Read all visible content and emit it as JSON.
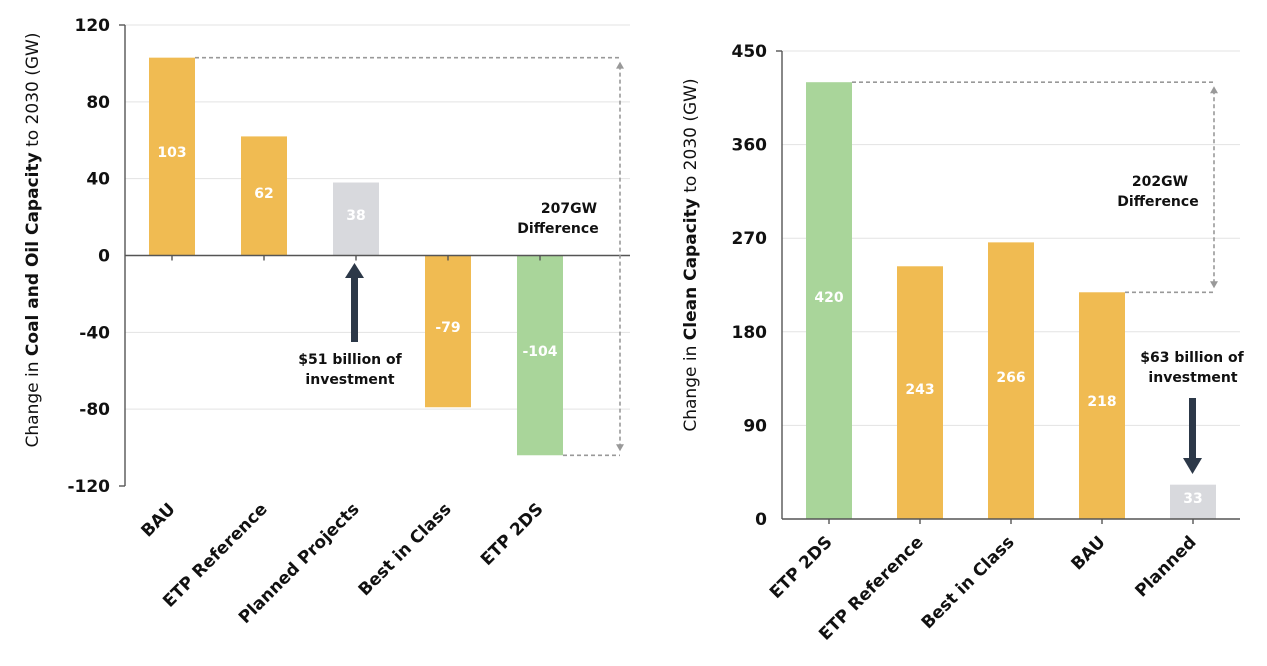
{
  "colors": {
    "bau": "#f0bb52",
    "planned": "#d8d9dd",
    "etp2ds": "#a9d59a",
    "arrow": "#2c3848"
  },
  "chart_data": [
    {
      "type": "bar",
      "categories": [
        "BAU",
        "ETP Reference",
        "Planned Projects",
        "Best in Class",
        "ETP 2DS"
      ],
      "values": [
        103,
        62,
        38,
        -79,
        -104
      ],
      "value_labels": [
        "103",
        "62",
        "38",
        "-79",
        "-104"
      ],
      "bar_colors": [
        "bau",
        "bau",
        "planned",
        "bau",
        "etp2ds"
      ],
      "ylim": [
        -120,
        120
      ],
      "yticks": [
        "120",
        "80",
        "40",
        "0",
        "-40",
        "-80",
        "-120"
      ],
      "ylabel": {
        "pre": "Change in ",
        "bold": "Coal and Oil Capacity",
        "post": " to 2030 (GW)"
      },
      "grid": true,
      "annotations": {
        "difference": [
          "207GW",
          "Difference"
        ],
        "investment": [
          "$51 billion of",
          "investment"
        ]
      }
    },
    {
      "type": "bar",
      "categories": [
        "ETP 2DS",
        "ETP Reference",
        "Best in Class",
        "BAU",
        "Planned"
      ],
      "values": [
        420,
        243,
        266,
        218,
        33
      ],
      "value_labels": [
        "420",
        "243",
        "266",
        "218",
        "33"
      ],
      "bar_colors": [
        "etp2ds",
        "bau",
        "bau",
        "bau",
        "planned"
      ],
      "ylim": [
        0,
        450
      ],
      "yticks": [
        "450",
        "360",
        "270",
        "180",
        "90",
        "0"
      ],
      "ylabel": {
        "pre": "Change in ",
        "bold": "Clean Capacity",
        "post": " to 2030 (GW)"
      },
      "grid": true,
      "annotations": {
        "difference": [
          "202GW",
          "Difference"
        ],
        "investment": [
          "$63 billion of",
          "investment"
        ]
      }
    }
  ]
}
